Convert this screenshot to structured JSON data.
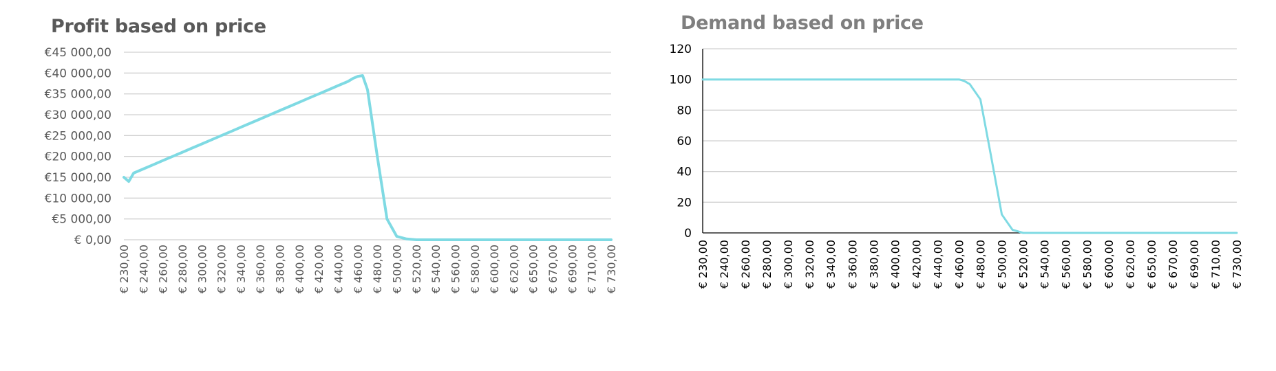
{
  "chart_data": [
    {
      "type": "line",
      "title": "Profit based on price",
      "xlabel": "",
      "ylabel": "",
      "ylim": [
        0,
        45000
      ],
      "grid": true,
      "y_tick_labels": [
        "€ 0,00",
        "€5 000,00",
        "€10 000,00",
        "€15 000,00",
        "€20 000,00",
        "€25 000,00",
        "€30 000,00",
        "€35 000,00",
        "€40 000,00",
        "€45 000,00"
      ],
      "x_tick_labels": [
        "€ 230,00",
        "€ 240,00",
        "€ 260,00",
        "€ 280,00",
        "€ 300,00",
        "€ 320,00",
        "€ 340,00",
        "€ 360,00",
        "€ 380,00",
        "€ 400,00",
        "€ 420,00",
        "€ 440,00",
        "€ 460,00",
        "€ 480,00",
        "€ 500,00",
        "€ 520,00",
        "€ 540,00",
        "€ 560,00",
        "€ 580,00",
        "€ 600,00",
        "€ 620,00",
        "€ 650,00",
        "€ 670,00",
        "€ 690,00",
        "€ 710,00",
        "€ 730,00"
      ],
      "x": [
        230,
        235,
        240,
        250,
        260,
        270,
        280,
        290,
        300,
        310,
        320,
        330,
        340,
        350,
        360,
        370,
        380,
        390,
        400,
        410,
        420,
        430,
        440,
        450,
        460,
        465,
        470,
        475,
        480,
        490,
        500,
        510,
        520,
        530,
        540,
        550,
        560,
        570,
        580,
        590,
        600,
        610,
        620,
        640,
        650,
        660,
        670,
        680,
        690,
        700,
        710,
        720,
        730
      ],
      "values": [
        15000,
        14000,
        16000,
        17000,
        18000,
        19000,
        20000,
        21000,
        22000,
        23000,
        24000,
        25000,
        26000,
        27000,
        28000,
        29000,
        30000,
        31000,
        32000,
        33000,
        34000,
        35000,
        36000,
        37000,
        38000,
        38700,
        39200,
        39400,
        36000,
        20000,
        5000,
        800,
        200,
        0,
        0,
        0,
        0,
        0,
        0,
        0,
        0,
        0,
        0,
        0,
        0,
        0,
        0,
        0,
        0,
        0,
        0,
        0,
        0
      ],
      "color": "#7fdae3"
    },
    {
      "type": "line",
      "title": "Demand based on price",
      "xlabel": "",
      "ylabel": "",
      "ylim": [
        0,
        120
      ],
      "grid": true,
      "y_tick_labels": [
        "0",
        "20",
        "40",
        "60",
        "80",
        "100",
        "120"
      ],
      "x_tick_labels": [
        "€ 230,00",
        "€ 240,00",
        "€ 260,00",
        "€ 280,00",
        "€ 300,00",
        "€ 320,00",
        "€ 340,00",
        "€ 360,00",
        "€ 380,00",
        "€ 400,00",
        "€ 420,00",
        "€ 440,00",
        "€ 460,00",
        "€ 480,00",
        "€ 500,00",
        "€ 520,00",
        "€ 540,00",
        "€ 560,00",
        "€ 580,00",
        "€ 600,00",
        "€ 620,00",
        "€ 650,00",
        "€ 670,00",
        "€ 690,00",
        "€ 710,00",
        "€ 730,00"
      ],
      "x": [
        230,
        240,
        260,
        280,
        300,
        320,
        340,
        360,
        380,
        400,
        420,
        440,
        460,
        470,
        475,
        480,
        490,
        500,
        510,
        520,
        530,
        540,
        560,
        580,
        600,
        620,
        650,
        670,
        690,
        710,
        730
      ],
      "values": [
        100,
        100,
        100,
        100,
        100,
        100,
        100,
        100,
        100,
        100,
        100,
        100,
        100,
        100,
        99,
        97,
        87,
        50,
        12,
        2,
        0,
        0,
        0,
        0,
        0,
        0,
        0,
        0,
        0,
        0,
        0
      ],
      "color": "#7fdae3"
    }
  ],
  "colors": {
    "line": "#7fdae3",
    "grid": "#d0d0d0",
    "profit_text": "#595959",
    "demand_text": "#000000"
  }
}
